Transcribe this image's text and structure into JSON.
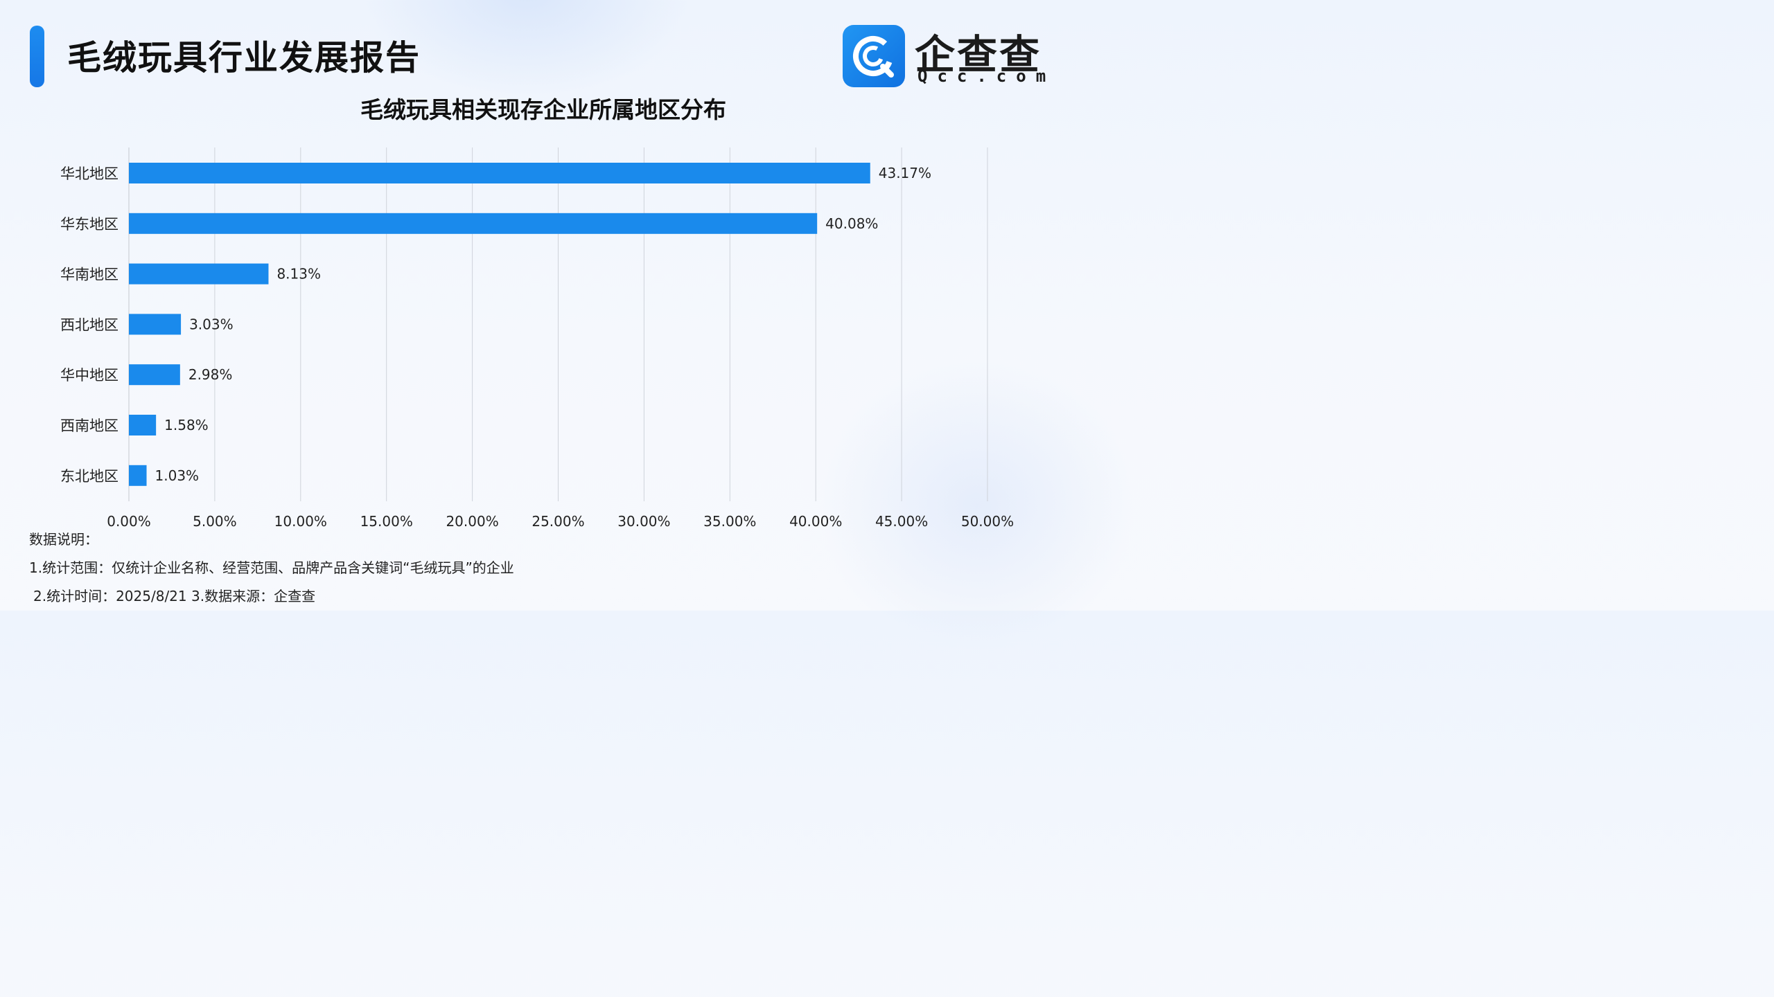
{
  "header": {
    "title": "毛绒玩具行业发展报告"
  },
  "logo": {
    "name": "企查查",
    "subtitle": "Qcc.com",
    "icon": "qcc-logo-icon"
  },
  "colors": {
    "accent": "#1a8cf0",
    "bar": "#1a8aec",
    "grid": "#cfd3da",
    "text": "#1f2329"
  },
  "chart_data": {
    "type": "bar",
    "orientation": "horizontal",
    "title": "毛绒玩具相关现存企业所属地区分布",
    "xlabel": "",
    "ylabel": "",
    "categories": [
      "华北地区",
      "华东地区",
      "华南地区",
      "西北地区",
      "华中地区",
      "西南地区",
      "东北地区"
    ],
    "values": [
      43.17,
      40.08,
      8.13,
      3.03,
      2.98,
      1.58,
      1.03
    ],
    "data_labels": [
      "43.17%",
      "40.08%",
      "8.13%",
      "3.03%",
      "2.98%",
      "1.58%",
      "1.03%"
    ],
    "xlim": [
      0,
      50
    ],
    "x_ticks": [
      0,
      5,
      10,
      15,
      20,
      25,
      30,
      35,
      40,
      45,
      50
    ],
    "x_tick_labels": [
      "0.00%",
      "5.00%",
      "10.00%",
      "15.00%",
      "20.00%",
      "25.00%",
      "30.00%",
      "35.00%",
      "40.00%",
      "45.00%",
      "50.00%"
    ],
    "grid": "vertical",
    "legend": "none"
  },
  "notes": {
    "heading": "数据说明：",
    "line1": "1.统计范围：仅统计企业名称、经营范围、品牌产品含关键词“毛绒玩具”的企业",
    "line2": "2.统计时间：2025/8/21 3.数据来源：企查查"
  }
}
